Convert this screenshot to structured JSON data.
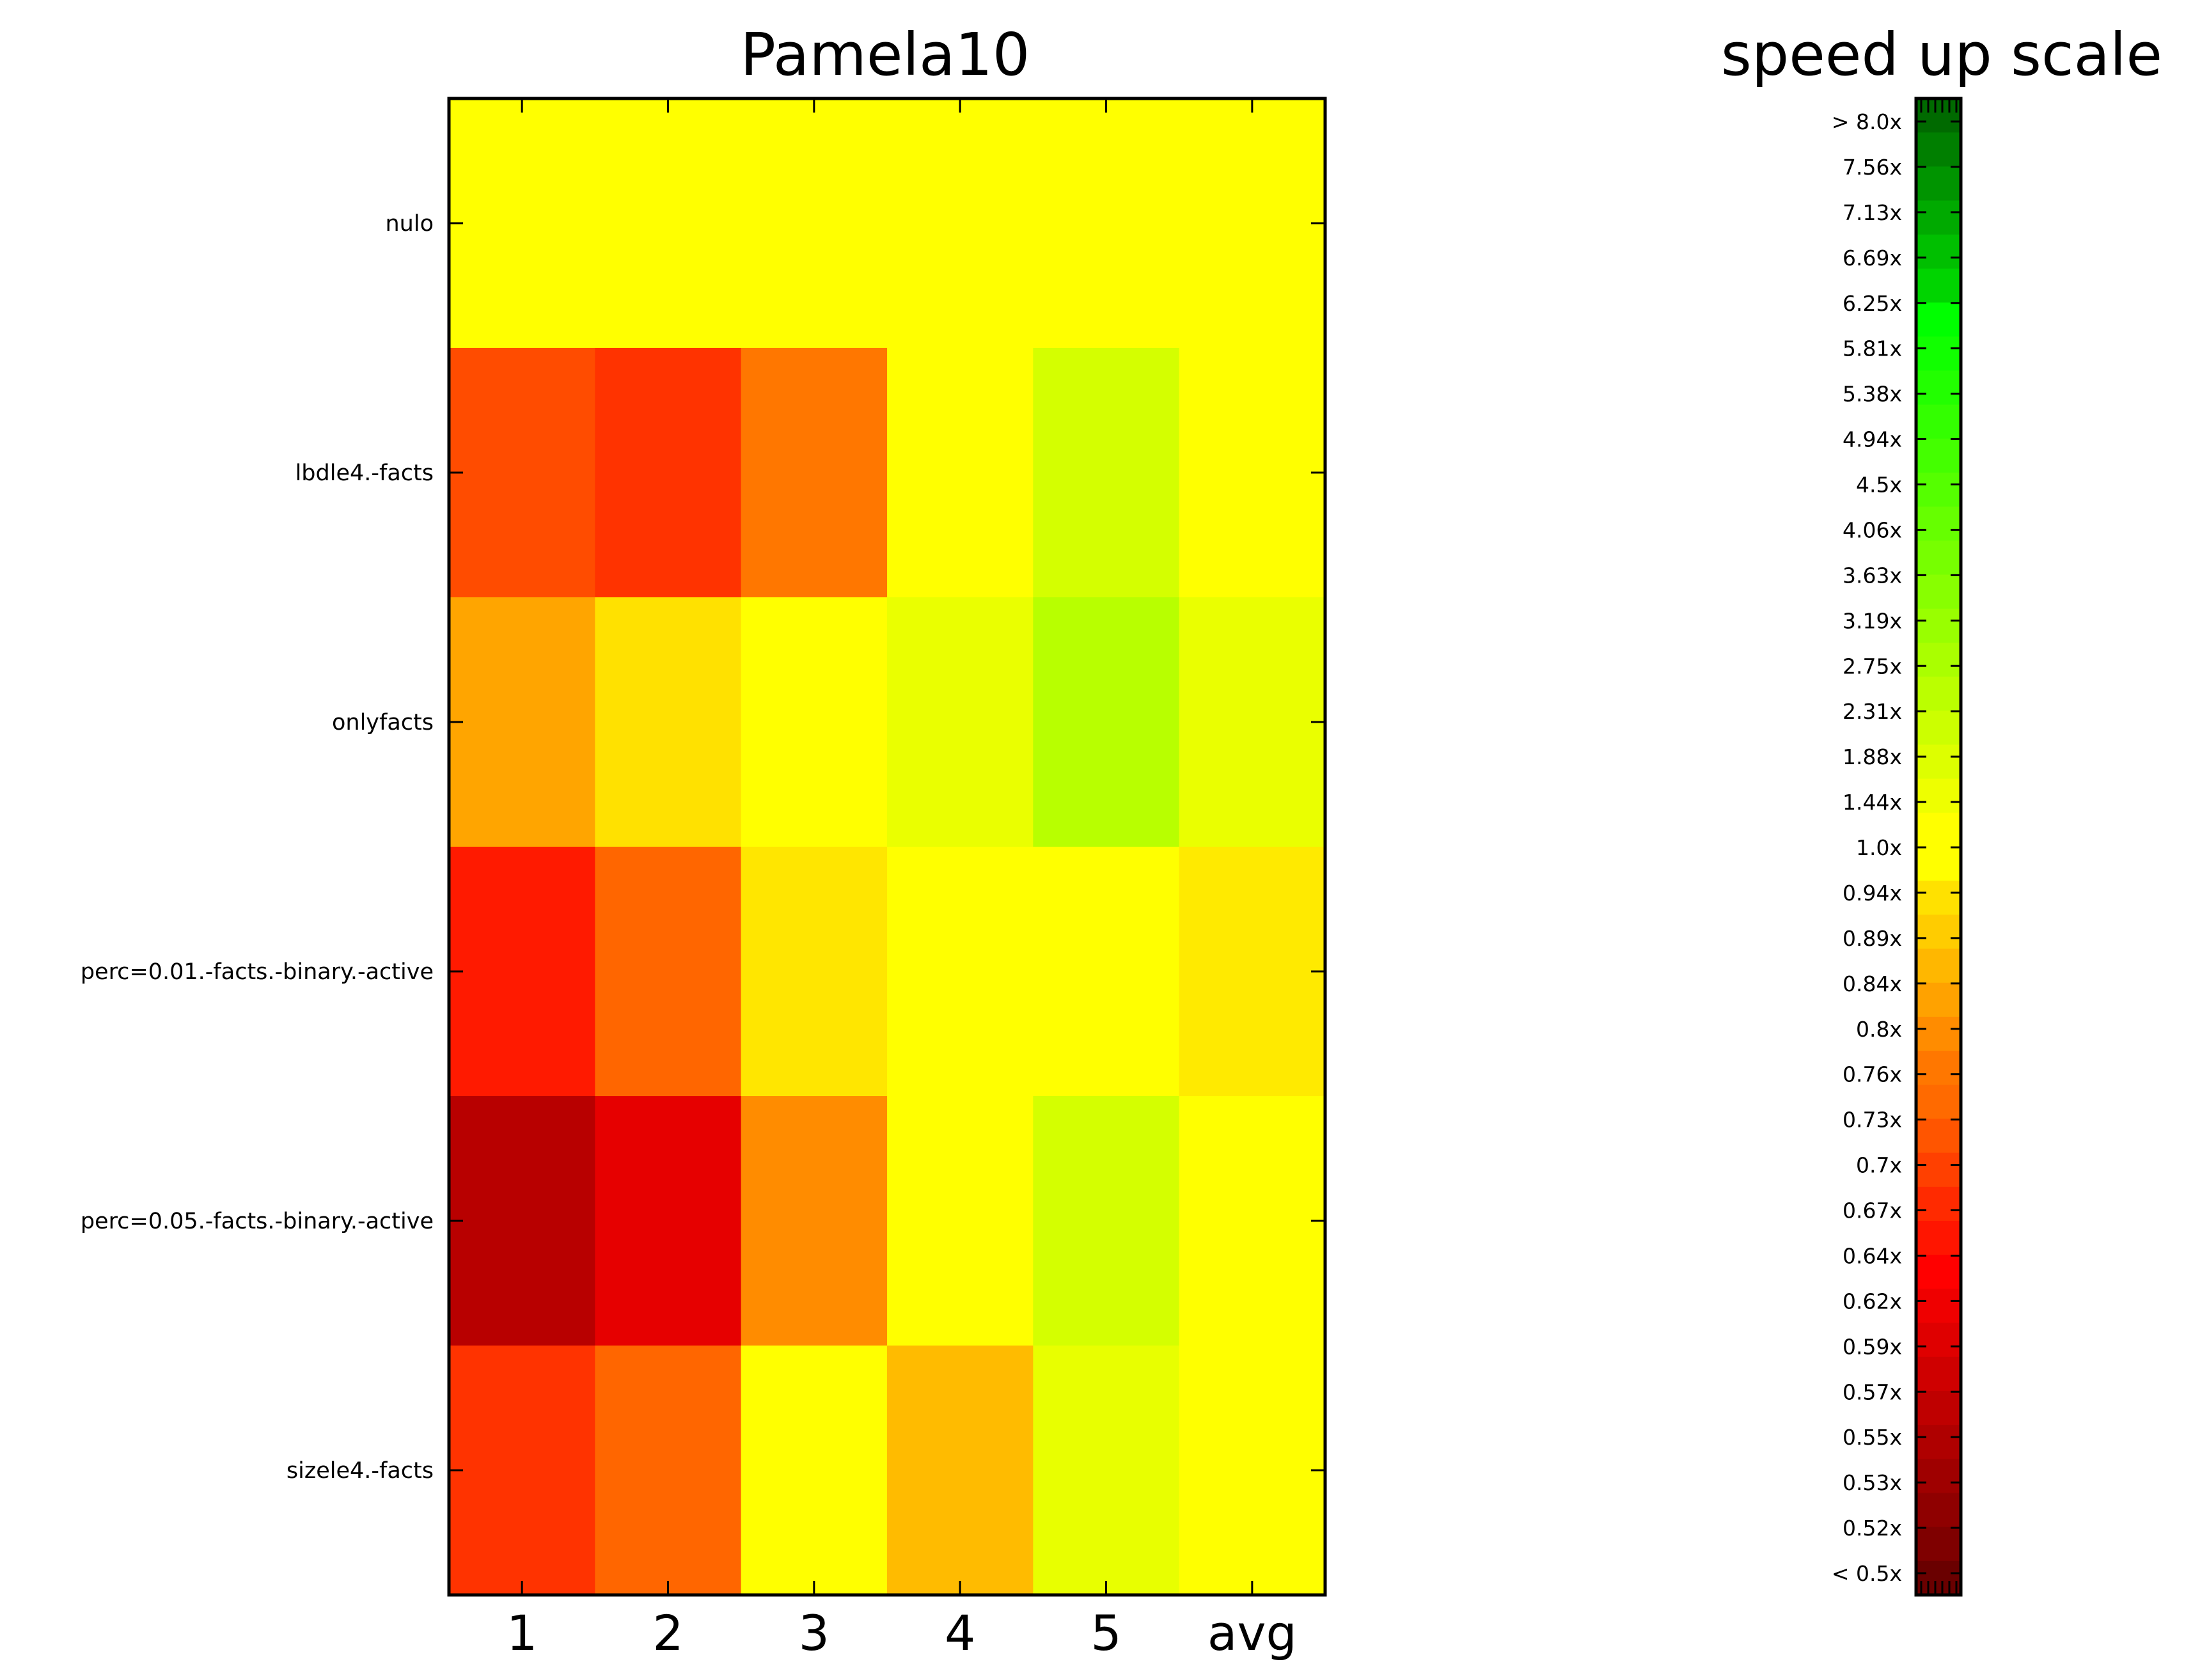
{
  "chart_data": {
    "type": "heatmap",
    "title": "Pamela10",
    "rows": [
      "nulo",
      "lbdle4.-facts",
      "onlyfacts",
      "perc=0.01.-facts.-binary.-active",
      "perc=0.05.-facts.-binary.-active",
      "sizele4.-facts"
    ],
    "columns": [
      "1",
      "2",
      "3",
      "4",
      "5",
      "avg"
    ],
    "cells": [
      [
        "#ffff00",
        "#ffff00",
        "#ffff00",
        "#ffff00",
        "#ffff00",
        "#ffff00"
      ],
      [
        "#ff4c00",
        "#ff3300",
        "#ff7700",
        "#ffff00",
        "#d4ff00",
        "#ffff00"
      ],
      [
        "#ffa500",
        "#ffe100",
        "#ffff00",
        "#eaff00",
        "#b8ff00",
        "#eaff00"
      ],
      [
        "#ff1a00",
        "#ff6600",
        "#ffe600",
        "#ffff00",
        "#ffff00",
        "#ffea00"
      ],
      [
        "#b80000",
        "#e60000",
        "#ff8c00",
        "#ffff00",
        "#d4ff00",
        "#ffff00"
      ],
      [
        "#ff3300",
        "#ff6600",
        "#ffff00",
        "#ffbb00",
        "#e8ff00",
        "#ffff00"
      ]
    ],
    "colorbar": {
      "title": "speed up scale",
      "labels_top_to_bottom": [
        "> 8.0x",
        "7.56x",
        "7.13x",
        "6.69x",
        "6.25x",
        "5.81x",
        "5.38x",
        "4.94x",
        "4.5x",
        "4.06x",
        "3.63x",
        "3.19x",
        "2.75x",
        "2.31x",
        "1.88x",
        "1.44x",
        "1.0x",
        "0.94x",
        "0.89x",
        "0.84x",
        "0.8x",
        "0.76x",
        "0.73x",
        "0.7x",
        "0.67x",
        "0.64x",
        "0.62x",
        "0.59x",
        "0.57x",
        "0.55x",
        "0.53x",
        "0.52x",
        "< 0.5x"
      ],
      "colors_top_to_bottom": [
        "#006a00",
        "#007f00",
        "#009400",
        "#00aa00",
        "#00bf00",
        "#00d400",
        "#00ff00",
        "#11ff00",
        "#22ff00",
        "#33ff00",
        "#44ff00",
        "#55ff00",
        "#66ff00",
        "#77ff00",
        "#88ff00",
        "#99ff00",
        "#aaff00",
        "#bbff00",
        "#ccff00",
        "#ddff00",
        "#eeff00",
        "#ffff00",
        "#ffff00",
        "#ffe100",
        "#ffcc00",
        "#ffb700",
        "#ffa200",
        "#ff8c00",
        "#ff7700",
        "#ff6a00",
        "#ff5500",
        "#ff4000",
        "#ff2a00",
        "#ff1500",
        "#ff0000",
        "#ef0000",
        "#df0000",
        "#cf0000",
        "#bf0000",
        "#af0000",
        "#9f0000",
        "#8f0000",
        "#7f0000",
        "#6a0000"
      ]
    }
  }
}
